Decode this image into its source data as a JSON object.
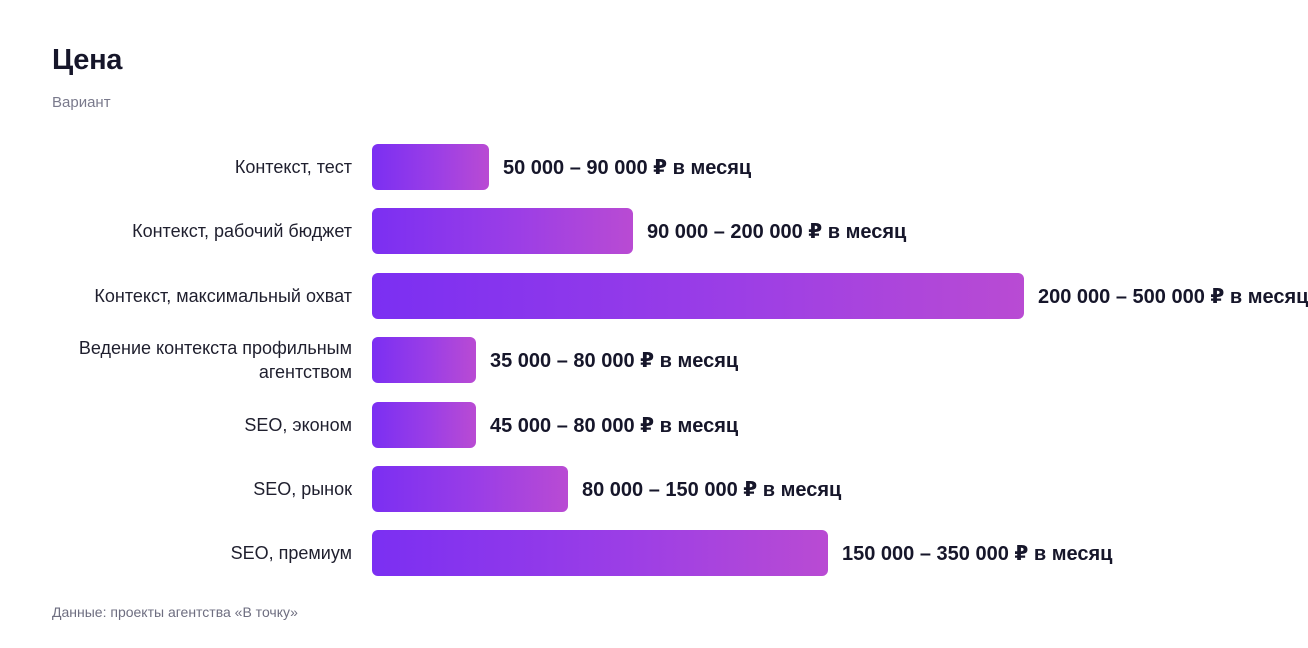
{
  "header": {
    "title": "Цена",
    "subtitle": "Вариант"
  },
  "footer": {
    "source": "Данные: проекты агентства «В точку»"
  },
  "colors": {
    "bar_start": "#7b2ff2",
    "bar_end": "#b94bd3",
    "text": "#16162a",
    "muted": "#7a7a8c"
  },
  "chart_data": {
    "type": "bar",
    "orientation": "horizontal",
    "title": "Цена",
    "subtitle": "Вариант",
    "categories": [
      "Контекст, тест",
      "Контекст, рабочий бюджет",
      "Контекст, максимальный охват",
      "Ведение контекста профильным агентством",
      "SEO, эконом",
      "SEO, рынок",
      "SEO, премиум"
    ],
    "series": [
      {
        "values": [
          90000,
          200000,
          500000,
          80000,
          80000,
          150000,
          350000
        ]
      }
    ],
    "value_labels": [
      "50 000 – 90 000 ₽ в месяц",
      "90 000 – 200 000 ₽ в месяц",
      "200 000 – 500 000 ₽ в месяц",
      "35 000 – 80 000 ₽ в месяц",
      "45 000 – 80 000 ₽ в месяц",
      "80 000 – 150 000 ₽ в месяц",
      "150 000 – 350 000 ₽ в месяц"
    ],
    "xlim": [
      0,
      500000
    ],
    "grid": false,
    "legend": "none"
  }
}
